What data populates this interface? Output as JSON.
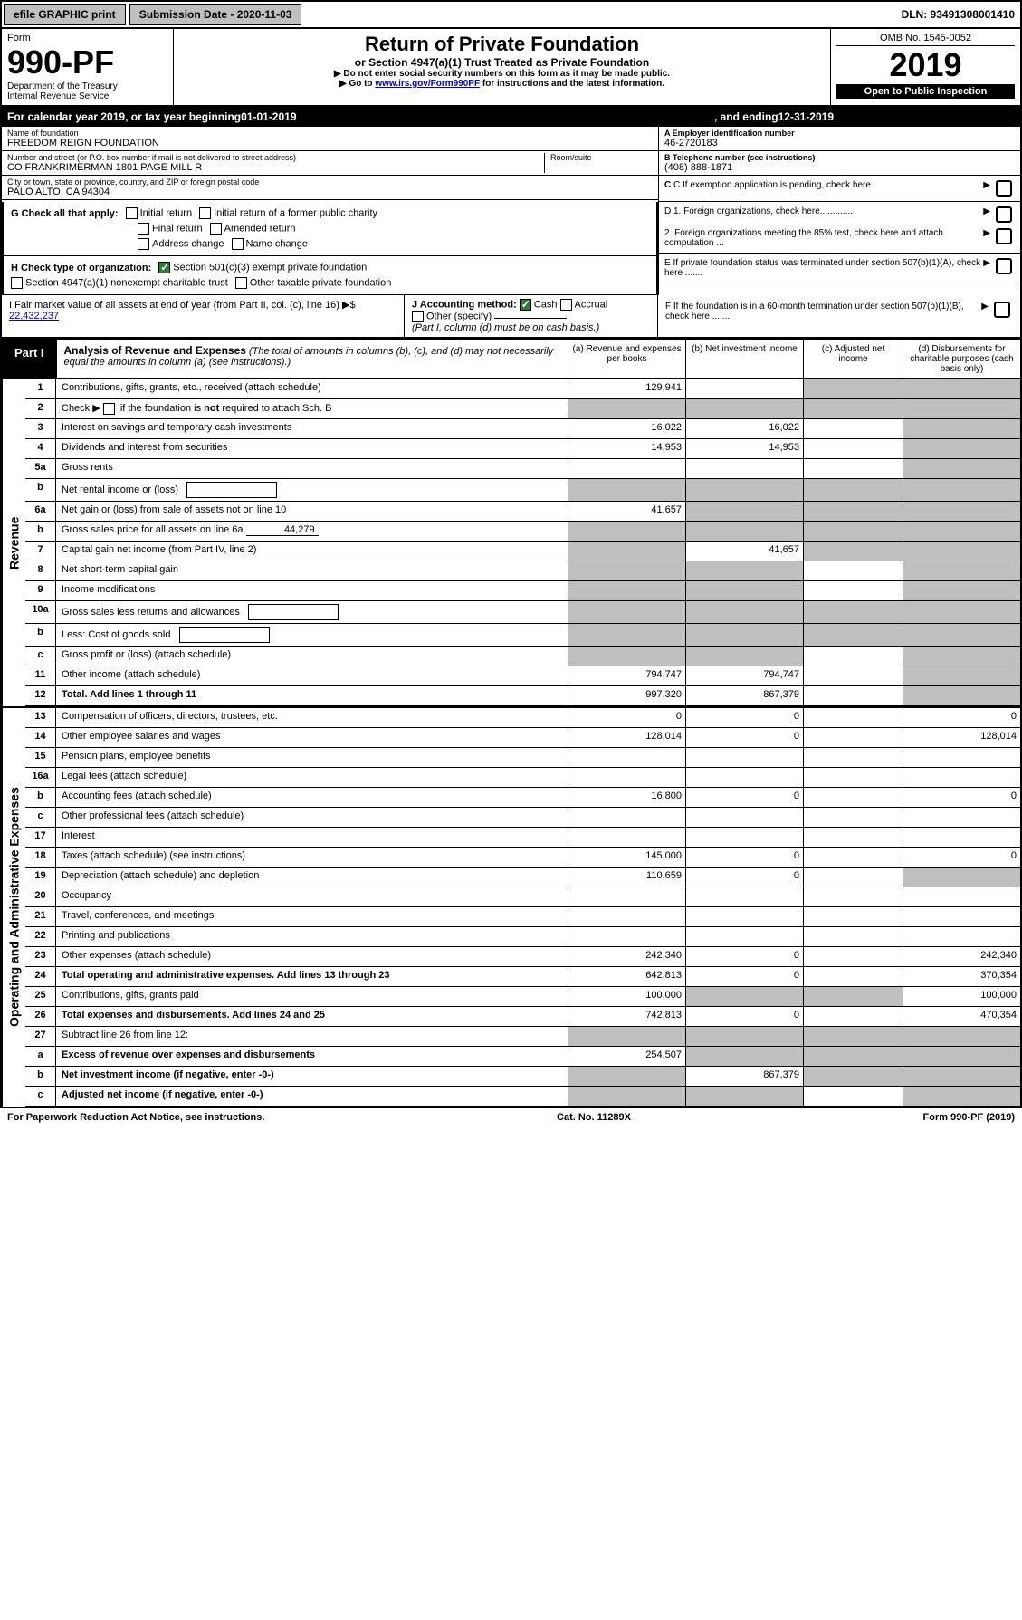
{
  "topbar": {
    "efile": "efile GRAPHIC print",
    "subdate_label": "Submission Date - 2020-11-03",
    "dln_label": "DLN: 93491308001410"
  },
  "header": {
    "form_label": "Form",
    "form_number": "990-PF",
    "dept": "Department of the Treasury",
    "irs": "Internal Revenue Service",
    "title": "Return of Private Foundation",
    "subtitle": "or Section 4947(a)(1) Trust Treated as Private Foundation",
    "instr1": "▶ Do not enter social security numbers on this form as it may be made public.",
    "instr2_prefix": "▶ Go to ",
    "instr2_link": "www.irs.gov/Form990PF",
    "instr2_suffix": " for instructions and the latest information.",
    "omb": "OMB No. 1545-0052",
    "year": "2019",
    "open_pub": "Open to Public Inspection"
  },
  "calrow": {
    "prefix": "For calendar year 2019, or tax year beginning ",
    "begin": "01-01-2019",
    "mid": ", and ending ",
    "end": "12-31-2019"
  },
  "info": {
    "name_lbl": "Name of foundation",
    "name_val": "FREEDOM REIGN FOUNDATION",
    "addr_lbl": "Number and street (or P.O. box number if mail is not delivered to street address)",
    "addr_val": "CO FRANKRIMERMAN 1801 PAGE MILL R",
    "room_lbl": "Room/suite",
    "city_lbl": "City or town, state or province, country, and ZIP or foreign postal code",
    "city_val": "PALO ALTO, CA  94304",
    "a_lbl": "A Employer identification number",
    "a_val": "46-2720183",
    "b_lbl": "B Telephone number (see instructions)",
    "b_val": "(408) 888-1871",
    "c_lbl": "C If exemption application is pending, check here"
  },
  "checks": {
    "g_lbl": "G Check all that apply:",
    "g_initial": "Initial return",
    "g_initial_former": "Initial return of a former public charity",
    "g_final": "Final return",
    "g_amended": "Amended return",
    "g_addr": "Address change",
    "g_name": "Name change",
    "h_lbl": "H Check type of organization:",
    "h_501c3": "Section 501(c)(3) exempt private foundation",
    "h_4947": "Section 4947(a)(1) nonexempt charitable trust",
    "h_other": "Other taxable private foundation",
    "i_lbl": "I Fair market value of all assets at end of year (from Part II, col. (c), line 16) ▶$",
    "i_val": "22,432,237",
    "j_lbl": "J Accounting method:",
    "j_cash": "Cash",
    "j_accrual": "Accrual",
    "j_other": "Other (specify)",
    "j_note": "(Part I, column (d) must be on cash basis.)",
    "d1": "D 1. Foreign organizations, check here.............",
    "d2": "2. Foreign organizations meeting the 85% test, check here and attach computation ...",
    "e": "E If private foundation status was terminated under section 507(b)(1)(A), check here .......",
    "f": "F If the foundation is in a 60-month termination under section 507(b)(1)(B), check here ........"
  },
  "part1": {
    "badge": "Part I",
    "title": "Analysis of Revenue and Expenses",
    "note": "(The total of amounts in columns (b), (c), and (d) may not necessarily equal the amounts in column (a) (see instructions).)",
    "col_a": "(a) Revenue and expenses per books",
    "col_b": "(b) Net investment income",
    "col_c": "(c) Adjusted net income",
    "col_d": "(d) Disbursements for charitable purposes (cash basis only)"
  },
  "sections": {
    "revenue": "Revenue",
    "opex": "Operating and Administrative Expenses"
  },
  "rows": [
    {
      "n": "1",
      "label": "Contributions, gifts, grants, etc., received (attach schedule)",
      "a": "129,941",
      "b": "",
      "c": "g",
      "d": "g"
    },
    {
      "n": "2",
      "label": "Check ▶ ☐ if the foundation is not required to attach Sch. B",
      "a": "g",
      "b": "g",
      "c": "g",
      "d": "g",
      "bold_not": true
    },
    {
      "n": "3",
      "label": "Interest on savings and temporary cash investments",
      "a": "16,022",
      "b": "16,022",
      "c": "",
      "d": "g"
    },
    {
      "n": "4",
      "label": "Dividends and interest from securities",
      "a": "14,953",
      "b": "14,953",
      "c": "",
      "d": "g"
    },
    {
      "n": "5a",
      "label": "Gross rents",
      "a": "",
      "b": "",
      "c": "",
      "d": "g"
    },
    {
      "n": "b",
      "label": "Net rental income or (loss)",
      "a": "g",
      "b": "g",
      "c": "g",
      "d": "g",
      "sub": true
    },
    {
      "n": "6a",
      "label": "Net gain or (loss) from sale of assets not on line 10",
      "a": "41,657",
      "b": "g",
      "c": "g",
      "d": "g"
    },
    {
      "n": "b",
      "label": "Gross sales price for all assets on line 6a",
      "a": "g",
      "b": "g",
      "c": "g",
      "d": "g",
      "inline_val": "44,279"
    },
    {
      "n": "7",
      "label": "Capital gain net income (from Part IV, line 2)",
      "a": "g",
      "b": "41,657",
      "c": "g",
      "d": "g"
    },
    {
      "n": "8",
      "label": "Net short-term capital gain",
      "a": "g",
      "b": "g",
      "c": "",
      "d": "g"
    },
    {
      "n": "9",
      "label": "Income modifications",
      "a": "g",
      "b": "g",
      "c": "",
      "d": "g"
    },
    {
      "n": "10a",
      "label": "Gross sales less returns and allowances",
      "a": "g",
      "b": "g",
      "c": "g",
      "d": "g",
      "sub": true
    },
    {
      "n": "b",
      "label": "Less: Cost of goods sold",
      "a": "g",
      "b": "g",
      "c": "g",
      "d": "g",
      "sub": true
    },
    {
      "n": "c",
      "label": "Gross profit or (loss) (attach schedule)",
      "a": "g",
      "b": "g",
      "c": "",
      "d": "g"
    },
    {
      "n": "11",
      "label": "Other income (attach schedule)",
      "a": "794,747",
      "b": "794,747",
      "c": "",
      "d": "g"
    },
    {
      "n": "12",
      "label": "Total. Add lines 1 through 11",
      "a": "997,320",
      "b": "867,379",
      "c": "",
      "d": "g",
      "bold": true
    }
  ],
  "oprows": [
    {
      "n": "13",
      "label": "Compensation of officers, directors, trustees, etc.",
      "a": "0",
      "b": "0",
      "c": "",
      "d": "0"
    },
    {
      "n": "14",
      "label": "Other employee salaries and wages",
      "a": "128,014",
      "b": "0",
      "c": "",
      "d": "128,014"
    },
    {
      "n": "15",
      "label": "Pension plans, employee benefits",
      "a": "",
      "b": "",
      "c": "",
      "d": ""
    },
    {
      "n": "16a",
      "label": "Legal fees (attach schedule)",
      "a": "",
      "b": "",
      "c": "",
      "d": ""
    },
    {
      "n": "b",
      "label": "Accounting fees (attach schedule)",
      "a": "16,800",
      "b": "0",
      "c": "",
      "d": "0"
    },
    {
      "n": "c",
      "label": "Other professional fees (attach schedule)",
      "a": "",
      "b": "",
      "c": "",
      "d": ""
    },
    {
      "n": "17",
      "label": "Interest",
      "a": "",
      "b": "",
      "c": "",
      "d": ""
    },
    {
      "n": "18",
      "label": "Taxes (attach schedule) (see instructions)",
      "a": "145,000",
      "b": "0",
      "c": "",
      "d": "0"
    },
    {
      "n": "19",
      "label": "Depreciation (attach schedule) and depletion",
      "a": "110,659",
      "b": "0",
      "c": "",
      "d": "g"
    },
    {
      "n": "20",
      "label": "Occupancy",
      "a": "",
      "b": "",
      "c": "",
      "d": ""
    },
    {
      "n": "21",
      "label": "Travel, conferences, and meetings",
      "a": "",
      "b": "",
      "c": "",
      "d": ""
    },
    {
      "n": "22",
      "label": "Printing and publications",
      "a": "",
      "b": "",
      "c": "",
      "d": ""
    },
    {
      "n": "23",
      "label": "Other expenses (attach schedule)",
      "a": "242,340",
      "b": "0",
      "c": "",
      "d": "242,340"
    },
    {
      "n": "24",
      "label": "Total operating and administrative expenses. Add lines 13 through 23",
      "a": "642,813",
      "b": "0",
      "c": "",
      "d": "370,354",
      "bold": true
    },
    {
      "n": "25",
      "label": "Contributions, gifts, grants paid",
      "a": "100,000",
      "b": "g",
      "c": "g",
      "d": "100,000"
    },
    {
      "n": "26",
      "label": "Total expenses and disbursements. Add lines 24 and 25",
      "a": "742,813",
      "b": "0",
      "c": "",
      "d": "470,354",
      "bold": true
    },
    {
      "n": "27",
      "label": "Subtract line 26 from line 12:",
      "a": "g",
      "b": "g",
      "c": "g",
      "d": "g"
    },
    {
      "n": "a",
      "label": "Excess of revenue over expenses and disbursements",
      "a": "254,507",
      "b": "g",
      "c": "g",
      "d": "g",
      "bold": true
    },
    {
      "n": "b",
      "label": "Net investment income (if negative, enter -0-)",
      "a": "g",
      "b": "867,379",
      "c": "g",
      "d": "g",
      "bold": true
    },
    {
      "n": "c",
      "label": "Adjusted net income (if negative, enter -0-)",
      "a": "g",
      "b": "g",
      "c": "",
      "d": "g",
      "bold": true
    }
  ],
  "footer": {
    "left": "For Paperwork Reduction Act Notice, see instructions.",
    "mid": "Cat. No. 11289X",
    "right": "Form 990-PF (2019)"
  }
}
